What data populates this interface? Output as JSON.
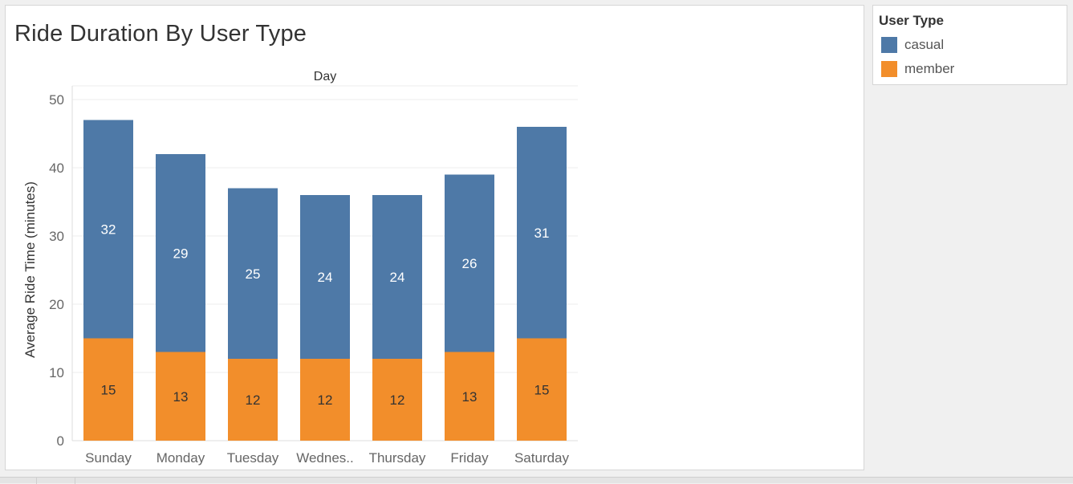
{
  "chart_data": {
    "type": "bar",
    "stacked": true,
    "title": "Ride Duration By User Type",
    "column_header": "Day",
    "xlabel": "",
    "ylabel": "Average Ride Time (minutes)",
    "ylim": [
      0,
      52
    ],
    "yticks": [
      0,
      10,
      20,
      30,
      40,
      50
    ],
    "grid": true,
    "categories": [
      "Sunday",
      "Monday",
      "Tuesday",
      "Wednes..",
      "Thursday",
      "Friday",
      "Saturday"
    ],
    "series": [
      {
        "name": "member",
        "color": "#f28e2b",
        "values": [
          15,
          13,
          12,
          12,
          12,
          13,
          15
        ],
        "label_color": "#333333"
      },
      {
        "name": "casual",
        "color": "#4e79a7",
        "values": [
          32,
          29,
          25,
          24,
          24,
          26,
          31
        ],
        "label_color": "#ffffff"
      }
    ]
  },
  "legend": {
    "title": "User Type",
    "items": [
      {
        "label": "casual",
        "color": "#4e79a7"
      },
      {
        "label": "member",
        "color": "#f28e2b"
      }
    ]
  }
}
